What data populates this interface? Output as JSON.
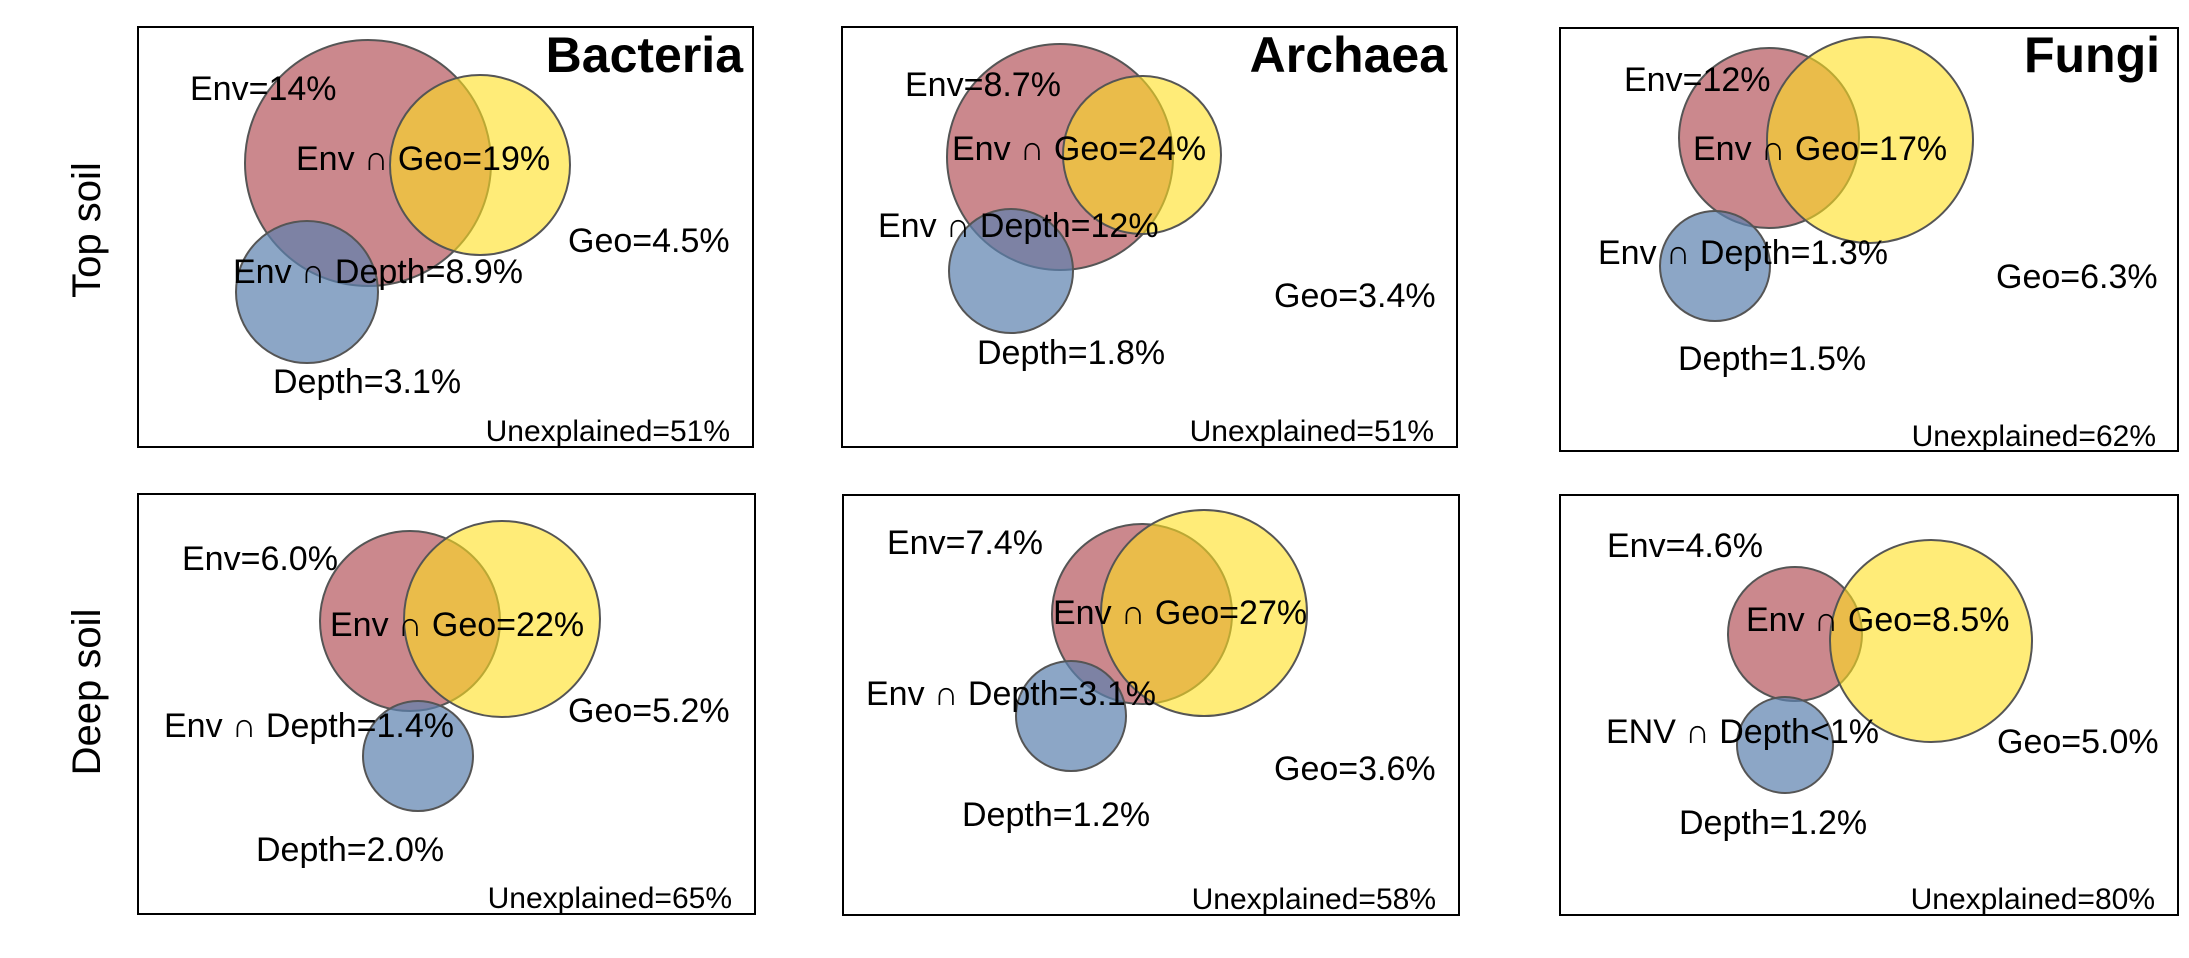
{
  "row_labels": [
    "Top soil",
    "Deep soil"
  ],
  "colors": {
    "env": "#b5555c",
    "geo": "#ffdf1e",
    "depth": "#5b80ae"
  },
  "panels": [
    {
      "title": "Bacteria",
      "env": "Env=14%",
      "env_geo": "Env ∩ Geo=19%",
      "env_depth": "Env ∩ Depth=8.9%",
      "geo": "Geo=4.5%",
      "depth": "Depth=3.1%",
      "unexplained": "Unexplained=51%"
    },
    {
      "title": "Archaea",
      "env": "Env=8.7%",
      "env_geo": "Env ∩ Geo=24%",
      "env_depth": "Env ∩ Depth=12%",
      "geo": "Geo=3.4%",
      "depth": "Depth=1.8%",
      "unexplained": "Unexplained=51%"
    },
    {
      "title": "Fungi",
      "env": "Env=12%",
      "env_geo": "Env ∩ Geo=17%",
      "env_depth": "Env ∩ Depth=1.3%",
      "geo": "Geo=6.3%",
      "depth": "Depth=1.5%",
      "unexplained": "Unexplained=62%"
    },
    {
      "title": "",
      "env": "Env=6.0%",
      "env_geo": "Env ∩ Geo=22%",
      "env_depth": "Env ∩ Depth=1.4%",
      "geo": "Geo=5.2%",
      "depth": "Depth=2.0%",
      "unexplained": "Unexplained=65%"
    },
    {
      "title": "",
      "env": "Env=7.4%",
      "env_geo": "Env ∩ Geo=27%",
      "env_depth": "Env ∩ Depth=3.1%",
      "geo": "Geo=3.6%",
      "depth": "Depth=1.2%",
      "unexplained": "Unexplained=58%"
    },
    {
      "title": "",
      "env": "Env=4.6%",
      "env_geo": "Env ∩ Geo=8.5%",
      "env_depth": "ENV ∩ Depth<1%",
      "geo": "Geo=5.0%",
      "depth": "Depth=1.2%",
      "unexplained": "Unexplained=80%"
    }
  ]
}
